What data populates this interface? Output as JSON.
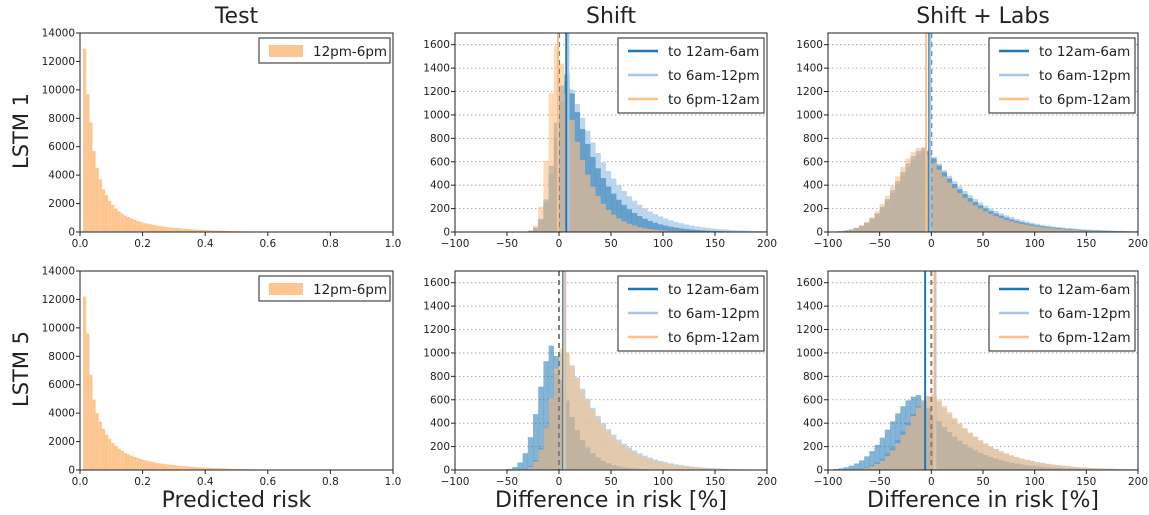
{
  "figure": {
    "column_titles": [
      "Test",
      "Shift",
      "Shift + Labs"
    ],
    "row_labels": [
      "LSTM 1",
      "LSTM 5"
    ],
    "x_labels": [
      "Predicted risk",
      "Difference in risk [%]",
      "Difference in risk [%]"
    ]
  },
  "colors": {
    "orange_fill": "#fdc58f",
    "to_12am_6am": "#1f77b4",
    "to_6am_12pm": "#a6c8e8",
    "to_6pm_12am": "#fdc084",
    "overlap_fill": "#c8b8a3",
    "zero_line": "#808080",
    "grid": "#999999"
  },
  "chart_data": [
    {
      "panel": "test-lstm1",
      "type": "bar",
      "title": "Test",
      "ylabel": "LSTM 1",
      "xlabel": "",
      "xlim": [
        0,
        1
      ],
      "ylim": [
        0,
        14000
      ],
      "xticks": [
        "0.0",
        "0.2",
        "0.4",
        "0.6",
        "0.8",
        "1.0"
      ],
      "yticks": [
        "0",
        "2000",
        "4000",
        "6000",
        "8000",
        "10000",
        "12000",
        "14000"
      ],
      "legend": [
        "12pm-6pm"
      ],
      "legend_position": "top-right",
      "grid": false,
      "series": [
        {
          "name": "12pm-6pm",
          "bin_width": 0.01,
          "bin_start": 0.01,
          "values": [
            12900,
            9700,
            7700,
            5700,
            4500,
            3700,
            3000,
            2600,
            2200,
            1900,
            1650,
            1450,
            1300,
            1150,
            1050,
            950,
            860,
            780,
            710,
            650,
            600,
            550,
            500,
            460,
            420,
            390,
            360,
            330,
            310,
            290,
            270,
            250,
            230,
            210,
            195,
            180,
            165,
            150,
            140,
            130,
            120,
            110,
            100,
            92,
            85,
            78,
            72,
            66,
            60,
            55,
            50,
            45,
            41,
            37,
            34,
            31,
            28,
            25,
            22,
            20,
            18,
            16,
            14,
            12,
            10,
            9,
            8,
            7,
            6,
            5,
            4,
            4,
            3,
            3,
            2,
            2,
            2,
            1,
            1,
            1
          ]
        }
      ]
    },
    {
      "panel": "shift-lstm1",
      "type": "bar",
      "title": "Shift",
      "xlabel": "",
      "xlim": [
        -100,
        200
      ],
      "ylim": [
        0,
        1700
      ],
      "xticks": [
        "−100",
        "−50",
        "0",
        "50",
        "100",
        "150",
        "200"
      ],
      "yticks": [
        "0",
        "200",
        "400",
        "600",
        "800",
        "1000",
        "1200",
        "1400",
        "1600"
      ],
      "legend": [
        "to 12am-6am",
        "to 6am-12pm",
        "to 6pm-12am"
      ],
      "legend_position": "top-right",
      "grid": true,
      "vlines": [
        {
          "x": 0,
          "style": "dashed"
        },
        {
          "x": 7,
          "series": "to 12am-6am"
        },
        {
          "x": 9,
          "series": "to 6am-12pm"
        },
        {
          "x": -1,
          "series": "to 6pm-12am"
        }
      ],
      "series": [
        {
          "name": "to 12am-6am",
          "center": 7,
          "peak": 1360,
          "left_width": 12,
          "right_width": 30
        },
        {
          "name": "to 6am-12pm",
          "center": 9,
          "peak": 1300,
          "left_width": 13,
          "right_width": 38
        },
        {
          "name": "to 6pm-12am",
          "center": -1,
          "peak": 1620,
          "left_width": 9,
          "right_width": 22
        }
      ]
    },
    {
      "panel": "shift-labs-lstm1",
      "type": "bar",
      "title": "Shift + Labs",
      "xlabel": "",
      "xlim": [
        -100,
        200
      ],
      "ylim": [
        0,
        1700
      ],
      "xticks": [
        "−100",
        "−50",
        "0",
        "50",
        "100",
        "150",
        "200"
      ],
      "yticks": [
        "0",
        "200",
        "400",
        "600",
        "800",
        "1000",
        "1200",
        "1400",
        "1600"
      ],
      "legend": [
        "to 12am-6am",
        "to 6am-12pm",
        "to 6pm-12am"
      ],
      "legend_position": "top-right",
      "grid": true,
      "vlines": [
        {
          "x": 0,
          "style": "dashed"
        },
        {
          "x": -2,
          "series": "to 12am-6am"
        },
        {
          "x": -1,
          "series": "to 6am-12pm"
        },
        {
          "x": -5,
          "series": "to 6pm-12am"
        }
      ],
      "series": [
        {
          "name": "to 12am-6am",
          "center": -5,
          "peak": 720,
          "left_width": 30,
          "right_width": 42
        },
        {
          "name": "to 6am-12pm",
          "center": -3,
          "peak": 700,
          "left_width": 31,
          "right_width": 45
        },
        {
          "name": "to 6pm-12am",
          "center": -8,
          "peak": 730,
          "left_width": 29,
          "right_width": 40
        }
      ]
    },
    {
      "panel": "test-lstm5",
      "type": "bar",
      "title": "",
      "ylabel": "LSTM 5",
      "xlabel": "Predicted risk",
      "xlim": [
        0,
        1
      ],
      "ylim": [
        0,
        14000
      ],
      "xticks": [
        "0.0",
        "0.2",
        "0.4",
        "0.6",
        "0.8",
        "1.0"
      ],
      "yticks": [
        "0",
        "2000",
        "4000",
        "6000",
        "8000",
        "10000",
        "12000",
        "14000"
      ],
      "legend": [
        "12pm-6pm"
      ],
      "legend_position": "top-right",
      "grid": false,
      "series": [
        {
          "name": "12pm-6pm",
          "bin_width": 0.01,
          "bin_start": 0.01,
          "values": [
            12200,
            9600,
            6700,
            4950,
            4000,
            3400,
            2900,
            2500,
            2200,
            1900,
            1700,
            1500,
            1350,
            1200,
            1100,
            1000,
            920,
            840,
            770,
            700,
            650,
            600,
            550,
            510,
            470,
            440,
            410,
            380,
            350,
            330,
            310,
            290,
            270,
            250,
            230,
            215,
            200,
            185,
            170,
            160,
            150,
            140,
            130,
            120,
            110,
            100,
            92,
            85,
            78,
            72,
            66,
            60,
            55,
            50,
            45,
            41,
            37,
            34,
            31,
            28,
            25,
            22,
            20,
            18,
            16,
            14,
            12,
            10,
            9,
            8,
            7,
            6,
            5,
            4,
            3,
            3,
            2,
            2,
            1,
            1
          ]
        }
      ]
    },
    {
      "panel": "shift-lstm5",
      "type": "bar",
      "title": "",
      "xlabel": "Difference in risk [%]",
      "xlim": [
        -100,
        200
      ],
      "ylim": [
        0,
        1700
      ],
      "xticks": [
        "−100",
        "−50",
        "0",
        "50",
        "100",
        "150",
        "200"
      ],
      "yticks": [
        "0",
        "200",
        "400",
        "600",
        "800",
        "1000",
        "1200",
        "1400",
        "1600"
      ],
      "legend": [
        "to 12am-6am",
        "to 6am-12pm",
        "to 6pm-12am"
      ],
      "legend_position": "top-right",
      "grid": true,
      "vlines": [
        {
          "x": 0,
          "style": "dashed"
        },
        {
          "x": 4,
          "series": "to 12am-6am"
        },
        {
          "x": 6,
          "series": "to 6am-12pm"
        },
        {
          "x": 5,
          "series": "to 6pm-12am"
        }
      ],
      "series": [
        {
          "name": "to 12am-6am",
          "center": -5,
          "peak": 1080,
          "left_width": 15,
          "right_width": 18
        },
        {
          "name": "to 6am-12pm",
          "center": 6,
          "peak": 1030,
          "left_width": 14,
          "right_width": 35
        },
        {
          "name": "to 6pm-12am",
          "center": 5,
          "peak": 1060,
          "left_width": 13,
          "right_width": 33
        }
      ]
    },
    {
      "panel": "shift-labs-lstm5",
      "type": "bar",
      "title": "",
      "xlabel": "Difference in risk [%]",
      "xlim": [
        -100,
        200
      ],
      "ylim": [
        0,
        1700
      ],
      "xticks": [
        "−100",
        "−50",
        "0",
        "50",
        "100",
        "150",
        "200"
      ],
      "yticks": [
        "0",
        "200",
        "400",
        "600",
        "800",
        "1000",
        "1200",
        "1400",
        "1600"
      ],
      "legend": [
        "to 12am-6am",
        "to 6am-12pm",
        "to 6pm-12am"
      ],
      "legend_position": "top-right",
      "grid": true,
      "vlines": [
        {
          "x": 0,
          "style": "dashed"
        },
        {
          "x": -6,
          "series": "to 12am-6am"
        },
        {
          "x": 4,
          "series": "to 6am-12pm"
        },
        {
          "x": 3,
          "series": "to 6pm-12am"
        }
      ],
      "series": [
        {
          "name": "to 12am-6am",
          "center": -12,
          "peak": 640,
          "left_width": 30,
          "right_width": 38
        },
        {
          "name": "to 6am-12pm",
          "center": 2,
          "peak": 640,
          "left_width": 28,
          "right_width": 44
        },
        {
          "name": "to 6pm-12am",
          "center": 3,
          "peak": 650,
          "left_width": 27,
          "right_width": 43
        }
      ]
    }
  ]
}
